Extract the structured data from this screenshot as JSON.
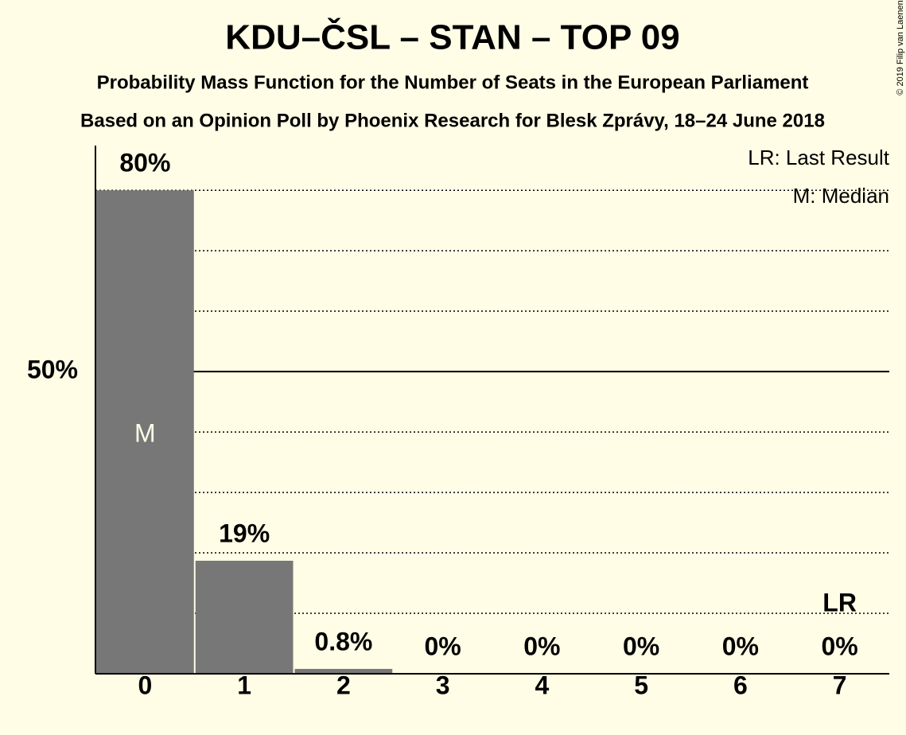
{
  "chart_data": {
    "type": "bar",
    "title": "KDU–ČSL – STAN – TOP 09",
    "subtitle": "Probability Mass Function for the Number of Seats in the European Parliament",
    "subtitle2": "Based on an Opinion Poll by Phoenix Research for Blesk Zprávy, 18–24 June 2018",
    "categories": [
      "0",
      "1",
      "2",
      "3",
      "4",
      "5",
      "6",
      "7"
    ],
    "values": [
      80,
      18.7,
      0.8,
      0,
      0,
      0,
      0,
      0
    ],
    "value_labels": [
      "80%",
      "19%",
      "0.8%",
      "0%",
      "0%",
      "0%",
      "0%",
      "0%"
    ],
    "color": "#777777",
    "ylim": [
      0,
      87.4
    ],
    "yticks": [
      {
        "value": 50,
        "label": "50%"
      }
    ],
    "minor_gridlines": [
      10,
      20,
      30,
      40,
      60,
      70,
      80
    ],
    "median": {
      "category_index": 0,
      "label": "M"
    },
    "last_result": {
      "category_index": 7,
      "label": "LR"
    },
    "legend": [
      "LR: Last Result",
      "M: Median"
    ],
    "copyright": "© 2019 Filip van Laenen"
  }
}
